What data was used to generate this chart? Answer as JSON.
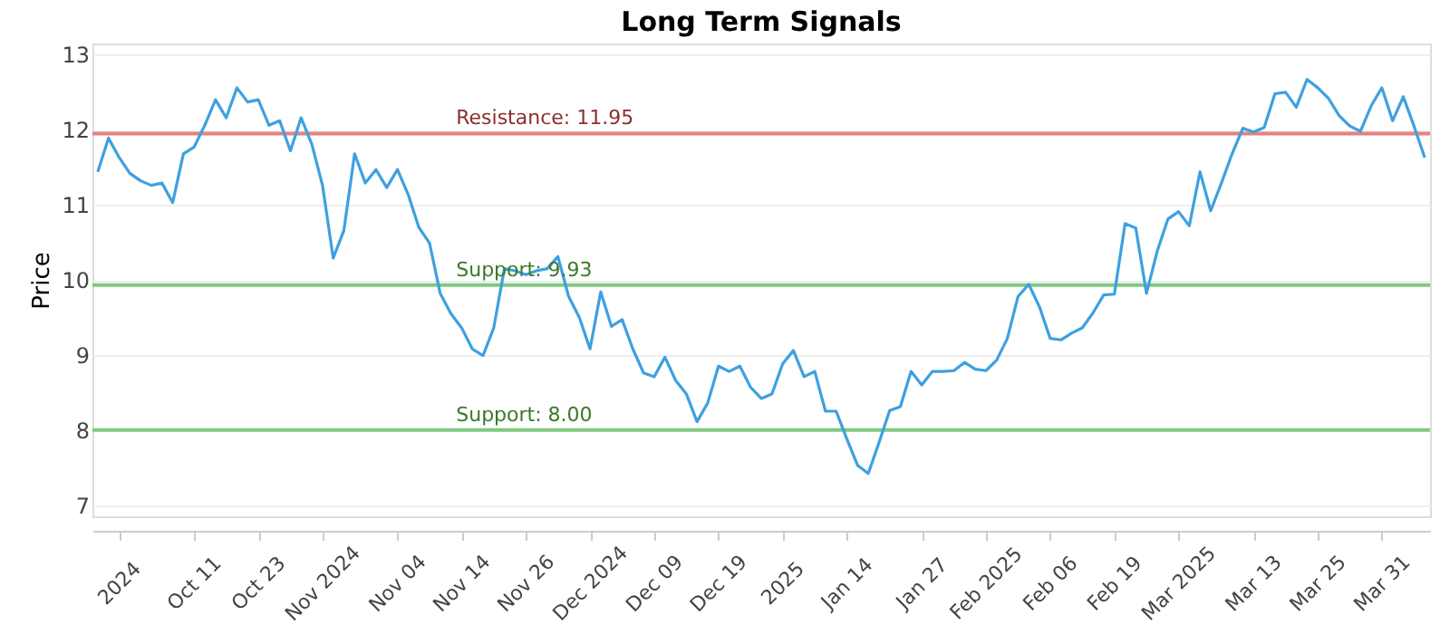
{
  "chart_data": {
    "type": "line",
    "title": "Long Term Signals",
    "ylabel": "Price",
    "categories": [
      null,
      null,
      "2024",
      null,
      null,
      null,
      null,
      null,
      null,
      "Oct 11",
      null,
      null,
      null,
      null,
      null,
      "Oct 23",
      null,
      null,
      null,
      null,
      null,
      "Nov 2024",
      null,
      null,
      null,
      null,
      null,
      null,
      "Nov 04",
      null,
      null,
      null,
      null,
      null,
      "Nov 14",
      null,
      null,
      null,
      null,
      null,
      "Nov 26",
      null,
      null,
      null,
      null,
      null,
      "Dec 2024",
      null,
      null,
      null,
      null,
      null,
      "Dec 09",
      null,
      null,
      null,
      null,
      null,
      "Dec 19",
      null,
      null,
      null,
      null,
      null,
      "2025",
      null,
      null,
      null,
      null,
      null,
      "Jan 14",
      null,
      null,
      null,
      null,
      null,
      null,
      "Jan 27",
      null,
      null,
      null,
      null,
      null,
      "Feb 2025",
      null,
      null,
      null,
      null,
      null,
      "Feb 06",
      null,
      null,
      null,
      null,
      null,
      "Feb 19",
      null,
      null,
      null,
      null,
      null,
      "Mar 2025",
      null,
      null,
      null,
      null,
      null,
      null,
      "Mar 13",
      null,
      null,
      null,
      null,
      null,
      "Mar 25",
      null,
      null,
      null,
      null,
      null,
      "Mar 31",
      null,
      null,
      null,
      null
    ],
    "series": [
      {
        "color": "#3ea0e0",
        "values": [
          11.44,
          11.89,
          11.63,
          11.42,
          11.32,
          11.26,
          11.29,
          11.03,
          11.68,
          11.77,
          12.06,
          12.4,
          12.16,
          12.56,
          12.37,
          12.4,
          12.06,
          12.12,
          11.72,
          12.16,
          11.81,
          11.26,
          10.29,
          10.66,
          11.68,
          11.29,
          11.47,
          11.23,
          11.47,
          11.14,
          10.7,
          10.49,
          9.82,
          9.55,
          9.36,
          9.08,
          8.99,
          9.36,
          10.15,
          10.12,
          10.07,
          10.12,
          10.15,
          10.31,
          9.78,
          9.5,
          9.08,
          9.84,
          9.38,
          9.47,
          9.08,
          8.76,
          8.71,
          8.97,
          8.66,
          8.48,
          8.11,
          8.36,
          8.85,
          8.78,
          8.85,
          8.57,
          8.42,
          8.48,
          8.88,
          9.06,
          8.71,
          8.78,
          8.25,
          8.25,
          7.88,
          7.53,
          7.42,
          7.83,
          8.26,
          8.31,
          8.78,
          8.6,
          8.78,
          8.78,
          8.79,
          8.9,
          8.81,
          8.79,
          8.93,
          9.22,
          9.78,
          9.94,
          9.64,
          9.22,
          9.2,
          9.29,
          9.36,
          9.56,
          9.8,
          9.81,
          10.75,
          10.69,
          9.82,
          10.38,
          10.81,
          10.91,
          10.72,
          11.44,
          10.92,
          11.29,
          11.68,
          12.02,
          11.97,
          12.03,
          12.48,
          12.5,
          12.3,
          12.67,
          12.56,
          12.42,
          12.19,
          12.05,
          11.98,
          12.32,
          12.56,
          12.12,
          12.44,
          12.05,
          11.63
        ]
      }
    ],
    "ylim": [
      6.85,
      13.15
    ],
    "yticks": [
      7,
      8,
      9,
      10,
      11,
      12,
      13
    ],
    "grid": "y",
    "legend": false,
    "ref_lines": [
      {
        "axis": "y",
        "value": 11.95,
        "label": "Resistance: 11.95",
        "color": "#e88080"
      },
      {
        "axis": "y",
        "value": 9.93,
        "label": "Support: 9.93",
        "color": "#80c880"
      },
      {
        "axis": "y",
        "value": 8.0,
        "label": "Support: 8.00",
        "color": "#80c880"
      }
    ]
  }
}
